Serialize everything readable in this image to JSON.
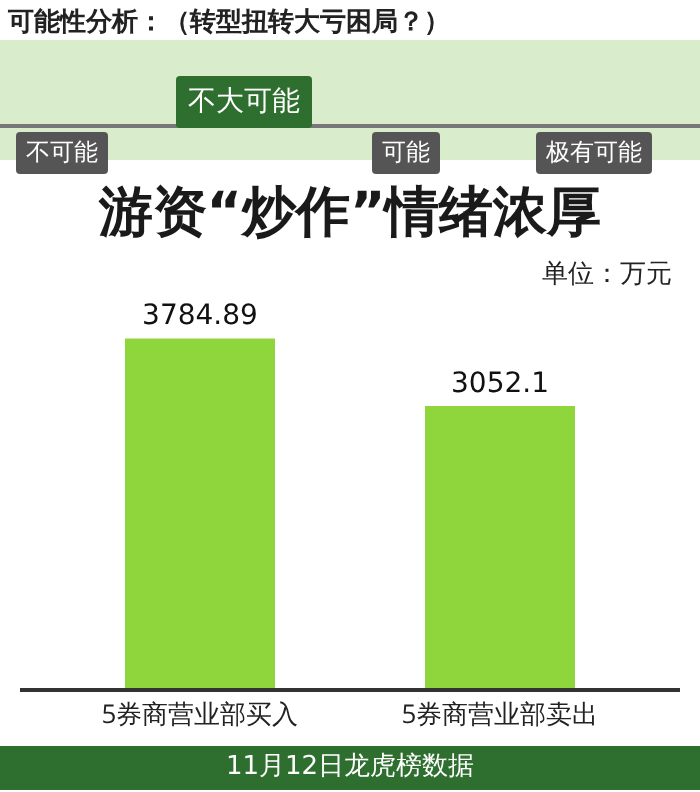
{
  "chart_data": {
    "type": "bar",
    "title": "可能性分析：（转型扭转大亏困局？）",
    "subtitle": "游资“炒作”情绪浓厚",
    "categories": [
      "5券商营业部买入",
      "5券商营业部卖出"
    ],
    "values": [
      3784.89,
      3052.1
    ],
    "color": "#8fd63c",
    "data_labels": true,
    "annotations": [
      "不可能",
      "不大可能",
      "可能",
      "极有可能",
      "单位：万元",
      "11月12日龙虎榜数据"
    ]
  }
}
